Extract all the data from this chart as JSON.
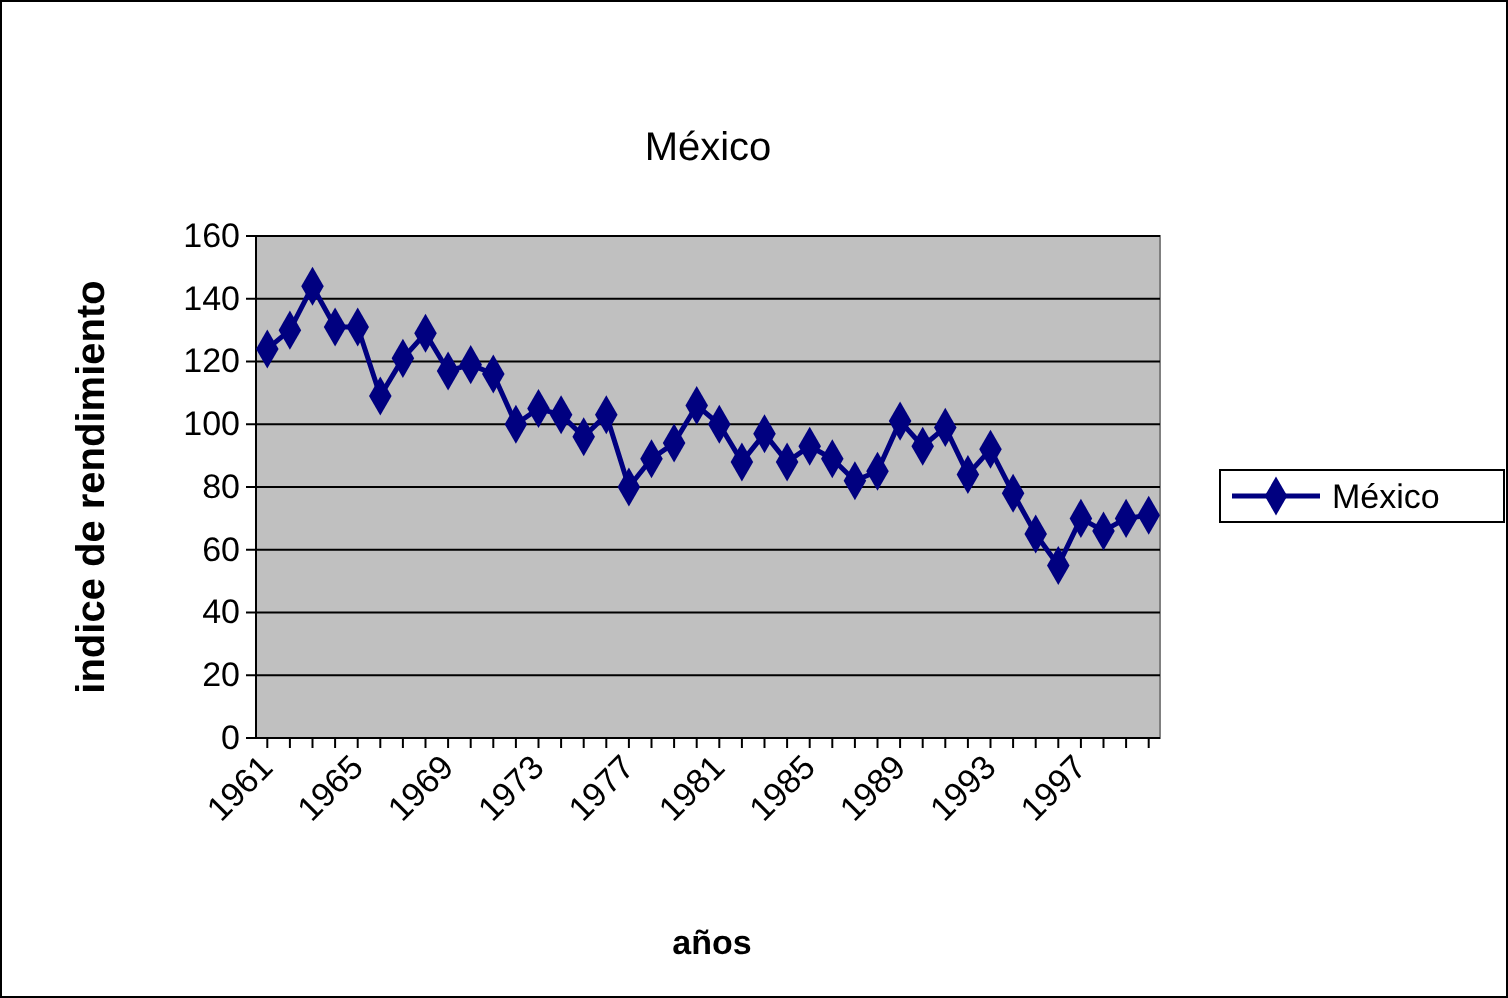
{
  "chart_data": {
    "type": "line",
    "title": "México",
    "xlabel": "años",
    "ylabel": "indice de rendimiento",
    "categories": [
      "1961",
      null,
      null,
      null,
      "1965",
      null,
      null,
      null,
      "1969",
      null,
      null,
      null,
      "1973",
      null,
      null,
      null,
      "1977",
      null,
      null,
      null,
      "1981",
      null,
      null,
      null,
      "1985",
      null,
      null,
      null,
      "1989",
      null,
      null,
      null,
      "1993",
      null,
      null,
      null,
      "1997",
      null,
      null,
      null
    ],
    "series": [
      {
        "name": "México",
        "color": "#000080",
        "values": [
          124,
          130,
          144,
          131,
          131,
          109,
          121,
          129,
          117,
          119,
          116,
          100,
          105,
          103,
          96,
          103,
          80,
          89,
          94,
          106,
          100,
          88,
          97,
          88,
          93,
          89,
          82,
          85,
          101,
          93,
          99,
          84,
          92,
          78,
          65,
          55,
          70,
          66,
          70,
          71
        ]
      }
    ],
    "ylim": [
      0,
      160
    ],
    "yticks": [
      0,
      20,
      40,
      60,
      80,
      100,
      120,
      140,
      160
    ],
    "grid": "y",
    "legend": "right",
    "marker": "diamond",
    "line_style": "solid"
  }
}
